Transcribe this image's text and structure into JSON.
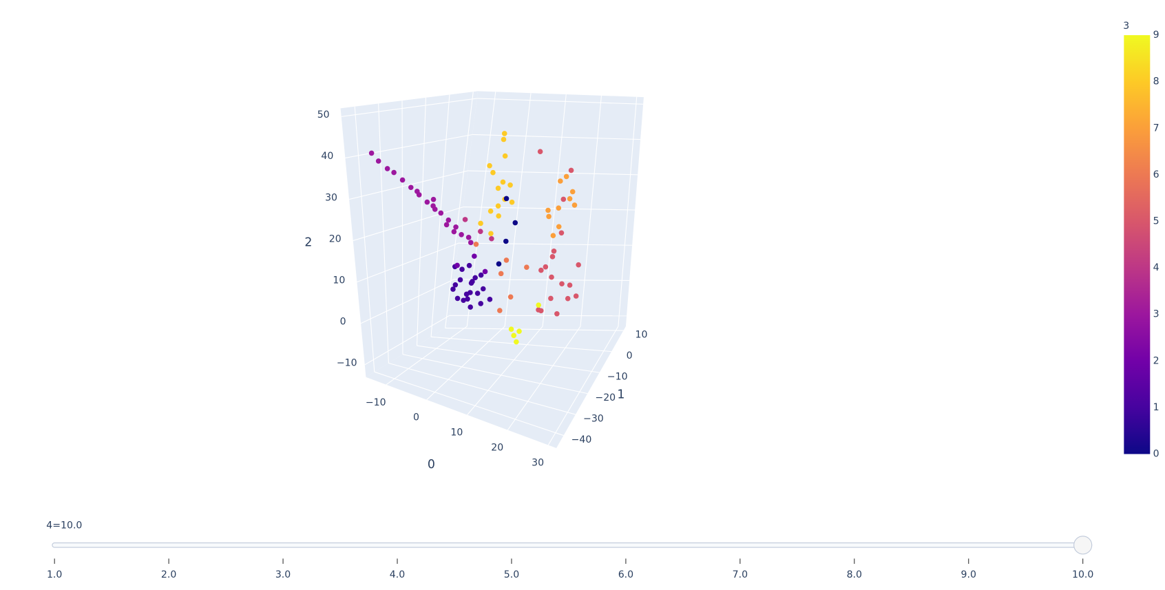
{
  "chart_data": {
    "type": "scatter3d",
    "xaxis_title": "0",
    "yaxis_title": "1",
    "zaxis_title": "2",
    "xlim": [
      -15,
      32
    ],
    "ylim": [
      -46,
      12
    ],
    "zlim": [
      -13,
      52
    ],
    "xticks": [
      {
        "value": -10,
        "label": "−10"
      },
      0,
      10,
      20,
      30
    ],
    "yticks": [
      10,
      0,
      {
        "value": -10,
        "label": "−10"
      },
      {
        "value": -20,
        "label": "−20"
      },
      {
        "value": -30,
        "label": "−30"
      },
      {
        "value": -40,
        "label": "−40"
      }
    ],
    "zticks": [
      {
        "value": -10,
        "label": "−10"
      },
      0,
      10,
      20,
      30,
      40,
      50
    ],
    "grid": true,
    "x": [
      -3,
      0,
      2,
      -1,
      1,
      3,
      -2,
      0,
      4,
      -4,
      1,
      2,
      -1,
      3,
      0,
      -2,
      5,
      1,
      -3,
      2,
      -5,
      -7,
      -4,
      -9,
      -11,
      -13,
      -15,
      -6,
      -3,
      -8,
      -10,
      -12,
      -2,
      -5,
      -14,
      -7,
      -9,
      -4,
      -1,
      -6,
      6,
      5,
      7,
      4,
      8,
      6,
      3,
      7,
      5,
      9,
      6,
      4,
      8,
      5,
      7,
      20,
      22,
      18,
      24,
      19,
      21,
      25,
      17,
      23,
      20,
      26,
      18,
      22,
      24,
      16,
      21,
      27,
      19,
      20,
      22,
      18,
      23,
      21,
      19,
      24,
      20,
      22,
      17,
      10,
      8,
      12,
      4,
      14,
      9,
      13,
      14,
      12,
      18,
      15,
      8,
      9,
      7,
      10,
      2,
      -1,
      4,
      3,
      0,
      5
    ],
    "y": [
      -17,
      -15,
      -19,
      -14,
      -20,
      -16,
      -18,
      -12,
      -17,
      -15,
      -22,
      -13,
      -19,
      -18,
      -16,
      -21,
      -15,
      -17,
      -13,
      -20,
      -17,
      -20,
      -15,
      -24,
      -28,
      -31,
      -34,
      -19,
      -14,
      -22,
      -26,
      -30,
      -12,
      -18,
      -33,
      -21,
      -25,
      -16,
      -13,
      -23,
      -14,
      -12,
      -16,
      -13,
      -15,
      -11,
      -17,
      -14,
      -10,
      -13,
      -18,
      -15,
      -12,
      -16,
      -14,
      -14,
      -12,
      -16,
      -13,
      -11,
      -17,
      -15,
      -10,
      -18,
      -13,
      -12,
      -15,
      -9,
      -19,
      -14,
      -11,
      -16,
      -20,
      -11,
      -9,
      -12,
      -10,
      -13,
      -8,
      -11,
      -14,
      -12,
      -10,
      -18,
      -16,
      -20,
      -22,
      -15,
      -19,
      -20,
      -21,
      -19,
      -17,
      -22,
      -14,
      -16,
      -15,
      -13,
      -18,
      -21,
      -16,
      -17,
      -19,
      -15
    ],
    "z": [
      6,
      4,
      8,
      2,
      5,
      9,
      3,
      7,
      6,
      10,
      4,
      1,
      8,
      5,
      11,
      6,
      3,
      7,
      9,
      2,
      22,
      25,
      20,
      29,
      33,
      36,
      40,
      24,
      18,
      27,
      31,
      35,
      17,
      21,
      38,
      26,
      30,
      19,
      16,
      28,
      26,
      30,
      24,
      34,
      28,
      38,
      22,
      32,
      42,
      27,
      20,
      36,
      31,
      25,
      44,
      10,
      8,
      12,
      5,
      14,
      6,
      9,
      11,
      3,
      16,
      13,
      2,
      35,
      30,
      40,
      20,
      7,
      4,
      26,
      28,
      24,
      30,
      22,
      32,
      27,
      20,
      34,
      25,
      14,
      10,
      6,
      18,
      12,
      2,
      -3,
      -4,
      -2,
      4,
      -1,
      28,
      18,
      12,
      22,
      14,
      12,
      10,
      20,
      23,
      18
    ],
    "color_values": [
      1,
      1,
      1,
      1,
      1,
      1,
      1,
      1,
      1,
      1,
      1,
      1,
      1,
      1,
      1,
      1,
      1,
      1,
      1,
      1,
      3,
      3,
      3,
      3,
      3,
      3,
      3,
      3,
      3,
      3,
      3,
      3,
      3,
      3,
      3,
      3,
      3,
      3,
      3,
      3,
      8,
      8,
      8,
      8,
      8,
      8,
      8,
      8,
      8,
      8,
      8,
      8,
      8,
      8,
      8,
      5,
      5,
      5,
      5,
      5,
      5,
      5,
      5,
      5,
      5,
      5,
      5,
      5,
      5,
      5,
      5,
      5,
      5,
      7,
      7,
      7,
      7,
      7,
      7,
      7,
      7,
      7,
      7,
      6,
      6,
      6,
      6,
      6,
      6,
      9,
      9,
      9,
      9,
      9,
      0,
      0,
      0,
      0,
      2,
      2,
      2,
      4,
      4,
      4
    ],
    "colorscale": [
      "#0d0887",
      "#46039f",
      "#7201a8",
      "#9c179e",
      "#bd3786",
      "#d8576b",
      "#ed7953",
      "#fb9f3a",
      "#fdca26",
      "#f0f921"
    ],
    "colorbar": {
      "title": "3",
      "range": [
        0,
        9
      ],
      "ticks": [
        0,
        1,
        2,
        3,
        4,
        5,
        6,
        7,
        8,
        9
      ]
    }
  },
  "slider": {
    "currentvalue": "4=10.0",
    "value": 10,
    "range": [
      1,
      10
    ],
    "ticks": [
      {
        "value": 1,
        "label": "1.0"
      },
      {
        "value": 2,
        "label": "2.0"
      },
      {
        "value": 3,
        "label": "3.0"
      },
      {
        "value": 4,
        "label": "4.0"
      },
      {
        "value": 5,
        "label": "5.0"
      },
      {
        "value": 6,
        "label": "6.0"
      },
      {
        "value": 7,
        "label": "7.0"
      },
      {
        "value": 8,
        "label": "8.0"
      },
      {
        "value": 9,
        "label": "9.0"
      },
      {
        "value": 10,
        "label": "10.0"
      }
    ]
  }
}
